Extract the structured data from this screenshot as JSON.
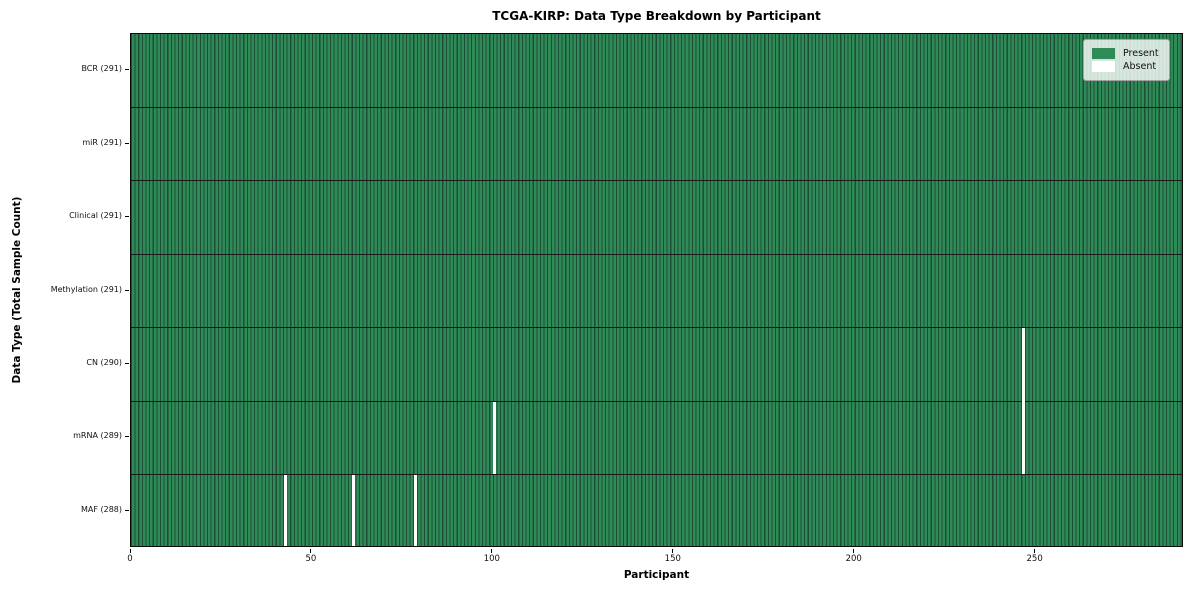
{
  "chart_data": {
    "type": "heatmap",
    "title": "TCGA-KIRP: Data Type Breakdown by Participant",
    "xlabel": "Participant",
    "ylabel": "Data Type (Total Sample Count)",
    "x_range": [
      0,
      291
    ],
    "x_ticks": [
      0,
      50,
      100,
      150,
      200,
      250
    ],
    "n_participants": 291,
    "grid": "row-separators",
    "legend_position": "upper-right",
    "rows": [
      {
        "name": "BCR",
        "label": "BCR (291)",
        "present_count": 291,
        "absent_participants": []
      },
      {
        "name": "miR",
        "label": "miR (291)",
        "present_count": 291,
        "absent_participants": []
      },
      {
        "name": "Clinical",
        "label": "Clinical (291)",
        "present_count": 291,
        "absent_participants": []
      },
      {
        "name": "Methylation",
        "label": "Methylation (291)",
        "present_count": 291,
        "absent_participants": []
      },
      {
        "name": "CN",
        "label": "CN (290)",
        "present_count": 290,
        "absent_participants": [
          246
        ]
      },
      {
        "name": "mRNA",
        "label": "mRNA (289)",
        "present_count": 289,
        "absent_participants": [
          100,
          246
        ]
      },
      {
        "name": "MAF",
        "label": "MAF (288)",
        "present_count": 288,
        "absent_participants": [
          42,
          61,
          78
        ]
      }
    ],
    "legend": [
      {
        "label": "Present",
        "color": "#2e8b57"
      },
      {
        "label": "Absent",
        "color": "#ffffff"
      }
    ],
    "colors": {
      "present_fill": "#2e8b57",
      "cell_edge": "#1e4d35",
      "row_separator": "#1a1a1a",
      "absent_fill": "#ffffff",
      "spine": "#0a0a0a",
      "legend_bg": "rgba(255,255,255,0.8)",
      "legend_border": "#a3a3a3"
    }
  }
}
